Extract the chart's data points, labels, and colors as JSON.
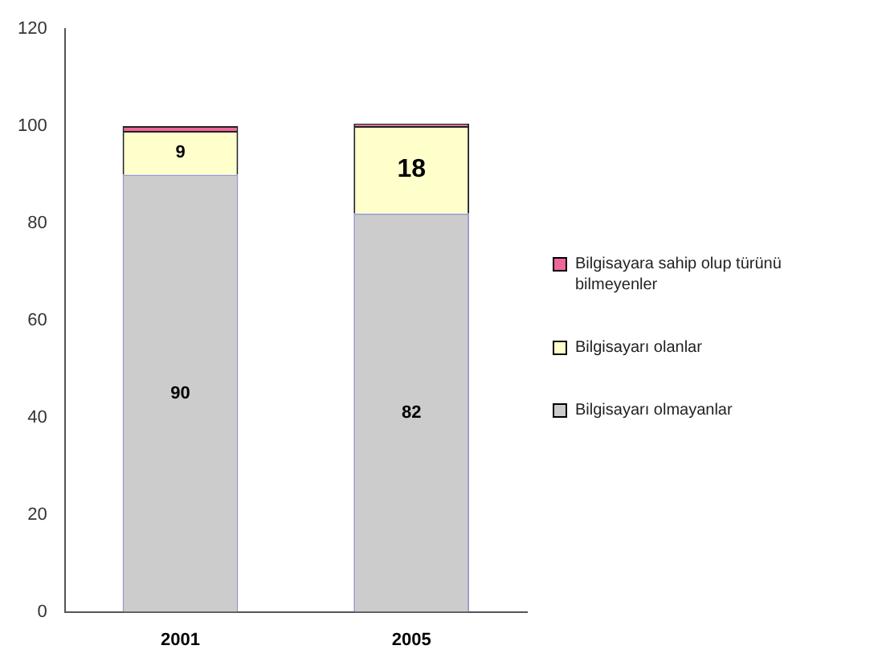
{
  "chart_data": {
    "type": "bar",
    "stacked": true,
    "categories": [
      "2001",
      "2005"
    ],
    "series": [
      {
        "name": "Bilgisayarı olmayanlar",
        "color": "#cccccc",
        "values": [
          90,
          82
        ],
        "value_labels": [
          "90",
          "82"
        ]
      },
      {
        "name": "Bilgisayarı olanlar",
        "color": "#ffffcc",
        "values": [
          9,
          18
        ],
        "value_labels": [
          "9",
          "18"
        ]
      },
      {
        "name": "Bilgisayara sahip olup türünü bilmeyenler",
        "color": "#ee6699",
        "values": [
          1,
          0.5
        ],
        "value_labels": [
          null,
          null
        ]
      }
    ],
    "ylim": [
      0,
      120
    ],
    "yticks": [
      0,
      20,
      40,
      60,
      80,
      100,
      120
    ],
    "grid": false,
    "legend": "right"
  }
}
